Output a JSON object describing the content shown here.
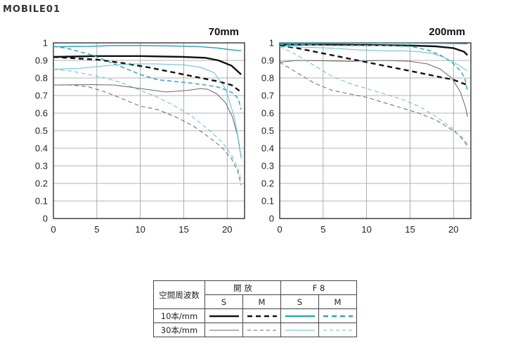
{
  "logo": {
    "text": "MOBILE01"
  },
  "chart_data": [
    {
      "type": "line",
      "title": "70mm",
      "xlim": [
        0,
        22
      ],
      "ylim": [
        0,
        1
      ],
      "xticks": [
        "0",
        "5",
        "10",
        "15",
        "20"
      ],
      "yticks": [
        "0",
        "0.1",
        "0.2",
        "0.3",
        "0.4",
        "0.5",
        "0.6",
        "0.7",
        "0.8",
        "0.9",
        "1"
      ],
      "grid": true,
      "series": [
        {
          "name": "10本/mm 開放 S",
          "color": "#111111",
          "width": 2.4,
          "dash": "",
          "x": [
            0,
            5,
            10,
            15,
            17.5,
            19,
            20.5,
            21.6
          ],
          "y": [
            0.92,
            0.925,
            0.925,
            0.92,
            0.915,
            0.9,
            0.87,
            0.82
          ]
        },
        {
          "name": "10本/mm 開放 M",
          "color": "#111111",
          "width": 2.4,
          "dash": "7 5",
          "x": [
            0,
            3,
            5,
            8,
            11,
            14,
            17,
            19,
            20.5,
            21.6
          ],
          "y": [
            0.92,
            0.91,
            0.905,
            0.885,
            0.86,
            0.83,
            0.8,
            0.78,
            0.76,
            0.72
          ]
        },
        {
          "name": "30本/mm 開放 S",
          "color": "#666666",
          "width": 1,
          "dash": "",
          "x": [
            0,
            4,
            7,
            10,
            13,
            15.5,
            17,
            17.8,
            18.8,
            19.8,
            20.6,
            21.2,
            21.6
          ],
          "y": [
            0.76,
            0.762,
            0.76,
            0.74,
            0.72,
            0.73,
            0.74,
            0.735,
            0.71,
            0.66,
            0.58,
            0.47,
            0.35
          ]
        },
        {
          "name": "30本/mm 開放 M",
          "color": "#666666",
          "width": 1,
          "dash": "6 4",
          "x": [
            0,
            2,
            4,
            6,
            8,
            10,
            12,
            14,
            16,
            18,
            19.5,
            20.5,
            21.2,
            21.6
          ],
          "y": [
            0.76,
            0.76,
            0.75,
            0.72,
            0.68,
            0.64,
            0.62,
            0.58,
            0.53,
            0.46,
            0.4,
            0.34,
            0.27,
            0.19
          ]
        },
        {
          "name": "10本/mm F8 S",
          "color": "#2fa6b8",
          "width": 1.5,
          "dash": "",
          "x": [
            0,
            4,
            7,
            10,
            14,
            17,
            19,
            20.5,
            21.6
          ],
          "y": [
            0.978,
            0.98,
            0.985,
            0.985,
            0.982,
            0.978,
            0.97,
            0.96,
            0.955
          ]
        },
        {
          "name": "10本/mm F8 M",
          "color": "#2fa6b8",
          "width": 1.5,
          "dash": "6 4",
          "x": [
            0,
            1.5,
            3,
            4.5,
            6,
            8,
            10,
            12,
            14,
            16,
            17.5,
            18.8,
            20,
            20.8,
            21.3,
            21.6
          ],
          "y": [
            0.98,
            0.97,
            0.95,
            0.93,
            0.9,
            0.86,
            0.82,
            0.79,
            0.78,
            0.77,
            0.76,
            0.75,
            0.73,
            0.71,
            0.68,
            0.62
          ]
        },
        {
          "name": "30本/mm F8 S",
          "color": "#5cc0d0",
          "width": 1,
          "dash": "",
          "x": [
            0,
            3,
            6,
            9,
            12,
            15,
            17,
            18.5,
            19.8,
            20.8,
            21.4,
            21.6
          ],
          "y": [
            0.85,
            0.855,
            0.87,
            0.88,
            0.88,
            0.875,
            0.86,
            0.83,
            0.74,
            0.58,
            0.42,
            0.34
          ]
        },
        {
          "name": "30本/mm F8 M",
          "color": "#5cc0d0",
          "width": 1,
          "dash": "6 4",
          "x": [
            0,
            2,
            4,
            6,
            8,
            10,
            12,
            14,
            16,
            18,
            19.5,
            20.5,
            21.2,
            21.6
          ],
          "y": [
            0.85,
            0.84,
            0.82,
            0.8,
            0.77,
            0.73,
            0.69,
            0.64,
            0.58,
            0.5,
            0.43,
            0.36,
            0.29,
            0.22
          ]
        }
      ]
    },
    {
      "type": "line",
      "title": "200mm",
      "xlim": [
        0,
        22
      ],
      "ylim": [
        0,
        1
      ],
      "xticks": [
        "0",
        "5",
        "10",
        "15",
        "20"
      ],
      "yticks": [
        "0",
        "0.1",
        "0.2",
        "0.3",
        "0.4",
        "0.5",
        "0.6",
        "0.7",
        "0.8",
        "0.9",
        "1"
      ],
      "grid": true,
      "series": [
        {
          "name": "10本/mm 開放 S",
          "color": "#111111",
          "width": 2.4,
          "dash": "",
          "x": [
            0,
            5,
            10,
            15,
            18,
            20,
            21.2,
            21.6
          ],
          "y": [
            0.99,
            0.99,
            0.988,
            0.985,
            0.98,
            0.97,
            0.95,
            0.93
          ]
        },
        {
          "name": "10本/mm 開放 M",
          "color": "#111111",
          "width": 2.4,
          "dash": "7 5",
          "x": [
            0,
            2,
            4,
            6,
            8,
            10,
            12,
            14,
            16,
            18,
            20,
            21.6
          ],
          "y": [
            0.985,
            0.97,
            0.95,
            0.93,
            0.91,
            0.89,
            0.87,
            0.85,
            0.83,
            0.81,
            0.79,
            0.76
          ]
        },
        {
          "name": "30本/mm 開放 S",
          "color": "#666666",
          "width": 1,
          "dash": "",
          "x": [
            0,
            2,
            5,
            8,
            12,
            15,
            17,
            18.5,
            19.8,
            20.8,
            21.4,
            21.6
          ],
          "y": [
            0.89,
            0.9,
            0.898,
            0.895,
            0.9,
            0.895,
            0.88,
            0.85,
            0.8,
            0.72,
            0.63,
            0.58
          ]
        },
        {
          "name": "30本/mm 開放 M",
          "color": "#666666",
          "width": 1,
          "dash": "6 4",
          "x": [
            0,
            2,
            4,
            6,
            8,
            10,
            12,
            14,
            16,
            18,
            20,
            21,
            21.6
          ],
          "y": [
            0.89,
            0.83,
            0.77,
            0.73,
            0.71,
            0.69,
            0.66,
            0.63,
            0.6,
            0.56,
            0.5,
            0.46,
            0.42
          ]
        },
        {
          "name": "10本/mm F8 S",
          "color": "#2fa6b8",
          "width": 1.5,
          "dash": "",
          "x": [
            0,
            5,
            10,
            15,
            18,
            20,
            21.6
          ],
          "y": [
            0.998,
            0.998,
            0.998,
            0.998,
            0.997,
            0.996,
            0.995
          ]
        },
        {
          "name": "10本/mm F8 M",
          "color": "#2fa6b8",
          "width": 1.5,
          "dash": "6 4",
          "x": [
            0,
            3,
            6,
            9,
            12,
            15,
            17,
            18.5,
            19.8,
            20.8,
            21.3,
            21.6
          ],
          "y": [
            0.99,
            0.99,
            0.985,
            0.985,
            0.985,
            0.98,
            0.96,
            0.93,
            0.89,
            0.84,
            0.8,
            0.73
          ]
        },
        {
          "name": "30本/mm F8 S",
          "color": "#5cc0d0",
          "width": 1,
          "dash": "",
          "x": [
            0,
            3,
            6,
            9,
            12,
            14,
            16,
            17.5,
            18.8,
            20,
            21,
            21.6
          ],
          "y": [
            0.98,
            0.975,
            0.97,
            0.96,
            0.955,
            0.955,
            0.95,
            0.94,
            0.92,
            0.89,
            0.86,
            0.84
          ]
        },
        {
          "name": "30本/mm F8 M",
          "color": "#5cc0d0",
          "width": 1,
          "dash": "6 4",
          "x": [
            0,
            2,
            4,
            6,
            8,
            10,
            12,
            14,
            16,
            18,
            20,
            21,
            21.6
          ],
          "y": [
            0.98,
            0.93,
            0.87,
            0.81,
            0.77,
            0.74,
            0.71,
            0.68,
            0.64,
            0.58,
            0.51,
            0.45,
            0.41
          ]
        }
      ]
    }
  ],
  "legend": {
    "corner_label": "空間周波数",
    "group1": "開 放",
    "group2": "F 8",
    "col_s": "S",
    "col_m": "M",
    "row1": "10本/mm",
    "row2": "30本/mm",
    "colors": {
      "black": "#111111",
      "gray": "#666666",
      "teal": "#2fa6b8",
      "light_teal": "#5cc0d0"
    }
  }
}
